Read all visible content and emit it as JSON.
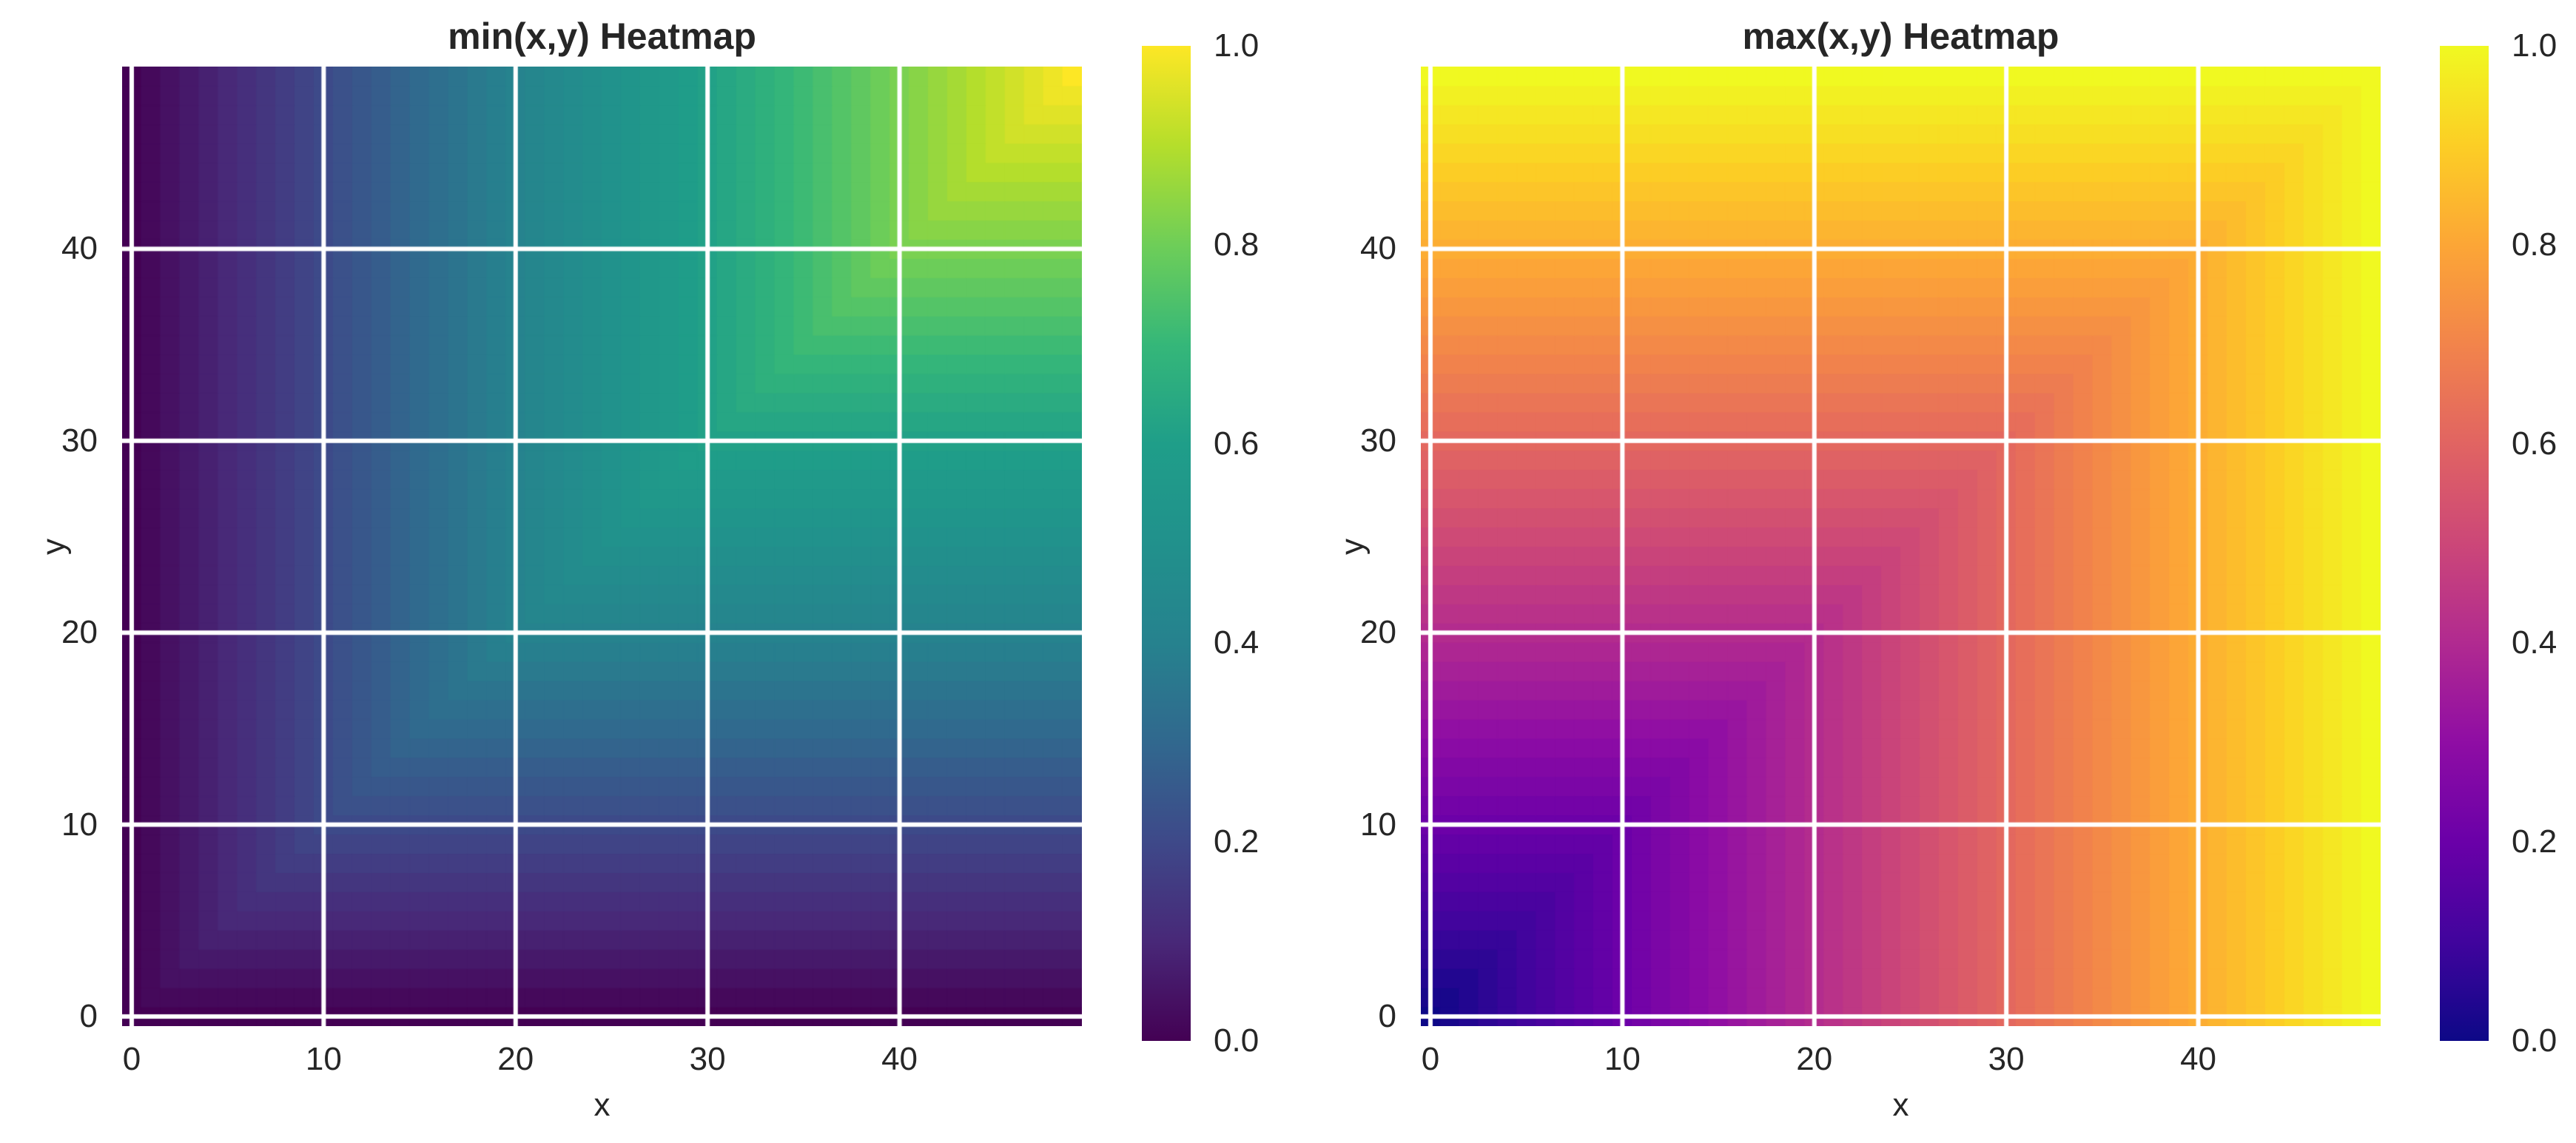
{
  "figure": {
    "background": "#ffffff",
    "text_color": "#262626",
    "grid_color": "#ffffff"
  },
  "chart_data": [
    {
      "type": "heatmap",
      "title": "min(x,y) Heatmap",
      "xlabel": "x",
      "ylabel": "y",
      "grid_n": 50,
      "x_values": "integers 0 to 49",
      "y_values": "integers 0 to 49",
      "z_formula": "z[y][x] = min(x, y) / 49",
      "value_fn": "min",
      "value_scale": 49,
      "vmin": 0.0,
      "vmax": 1.0,
      "colormap": "viridis",
      "origin": "lower",
      "grid": true,
      "x_ticks": [
        0,
        10,
        20,
        30,
        40
      ],
      "y_ticks": [
        0,
        10,
        20,
        30,
        40
      ],
      "colorbar_ticks": [
        1.0,
        0.8,
        0.6,
        0.4,
        0.2,
        0.0
      ]
    },
    {
      "type": "heatmap",
      "title": "max(x,y) Heatmap",
      "xlabel": "x",
      "ylabel": "y",
      "grid_n": 50,
      "x_values": "integers 0 to 49",
      "y_values": "integers 0 to 49",
      "z_formula": "z[y][x] = max(x, y) / 49",
      "value_fn": "max",
      "value_scale": 49,
      "vmin": 0.0,
      "vmax": 1.0,
      "colormap": "plasma",
      "origin": "lower",
      "grid": true,
      "x_ticks": [
        0,
        10,
        20,
        30,
        40
      ],
      "y_ticks": [
        0,
        10,
        20,
        30,
        40
      ],
      "colorbar_ticks": [
        1.0,
        0.8,
        0.6,
        0.4,
        0.2,
        0.0
      ]
    }
  ],
  "colormaps": {
    "viridis": [
      "#440154",
      "#482878",
      "#3e4989",
      "#31688e",
      "#26828e",
      "#21918c",
      "#1f9e89",
      "#35b779",
      "#6ece58",
      "#b5de2b",
      "#fde725"
    ],
    "plasma": [
      "#0d0887",
      "#41049d",
      "#6a00a8",
      "#8f0da4",
      "#b12a90",
      "#cc4778",
      "#e16462",
      "#f2844b",
      "#fca636",
      "#fcce25",
      "#f0f921"
    ]
  }
}
